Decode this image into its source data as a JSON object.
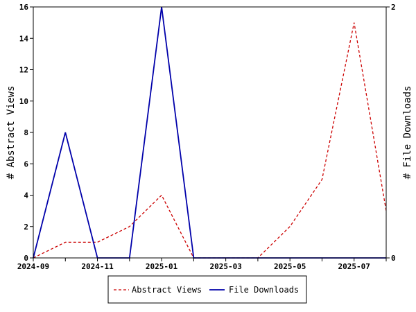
{
  "chart_data": {
    "type": "line",
    "x": [
      "2024-09",
      "2024-10",
      "2024-11",
      "2024-12",
      "2025-01",
      "2025-02",
      "2025-03",
      "2025-04",
      "2025-05",
      "2025-06",
      "2025-07",
      "2025-08"
    ],
    "x_tick_labels": [
      "2024-09",
      "2024-11",
      "2025-01",
      "2025-03",
      "2025-05",
      "2025-07"
    ],
    "ylabel": "# Abstract Views",
    "ylim": [
      0,
      16
    ],
    "y_ticks": [
      0,
      2,
      4,
      6,
      8,
      10,
      12,
      14,
      16
    ],
    "y2label": "# File Downloads",
    "y2lim": [
      0,
      2
    ],
    "y2_ticks": [
      0,
      2
    ],
    "legend_position": "bottom-center",
    "grid": false,
    "series": [
      {
        "name": "Abstract Views",
        "axis": "left",
        "style": "dashed",
        "color": "#cc0000",
        "values": [
          0,
          1,
          1,
          2,
          4,
          0,
          0,
          0,
          2,
          5,
          15,
          3
        ]
      },
      {
        "name": "File Downloads",
        "axis": "right",
        "style": "solid",
        "color": "#0000aa",
        "values": [
          0,
          1,
          0,
          0,
          2,
          0,
          0,
          0,
          0,
          0,
          0,
          0
        ]
      }
    ]
  }
}
